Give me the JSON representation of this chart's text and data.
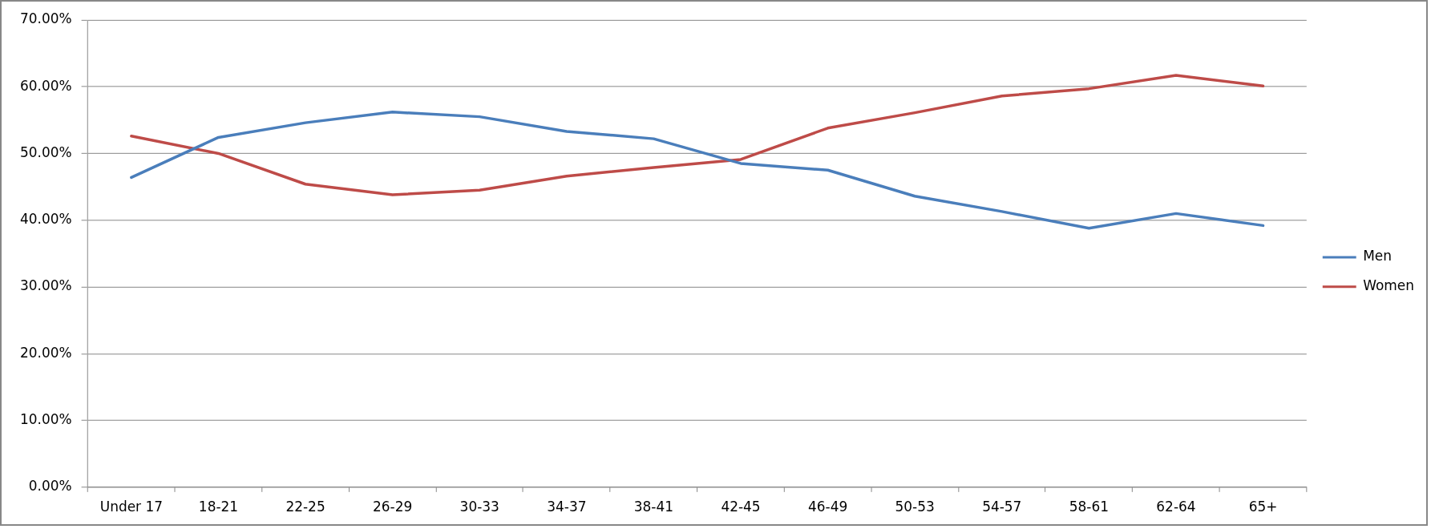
{
  "chart_data": {
    "type": "line",
    "categories": [
      "Under 17",
      "18-21",
      "22-25",
      "26-29",
      "30-33",
      "34-37",
      "38-41",
      "42-45",
      "46-49",
      "50-53",
      "54-57",
      "58-61",
      "62-64",
      "65+"
    ],
    "series": [
      {
        "name": "Men",
        "color": "#4a7ebb",
        "values": [
          46.4,
          52.4,
          54.6,
          56.2,
          55.5,
          53.3,
          52.2,
          48.5,
          47.5,
          43.6,
          41.3,
          38.8,
          41.0,
          39.2
        ]
      },
      {
        "name": "Women",
        "color": "#be4b48",
        "values": [
          52.6,
          50.0,
          45.4,
          43.8,
          44.5,
          46.6,
          47.9,
          49.1,
          53.8,
          56.1,
          58.6,
          59.7,
          61.7,
          60.1
        ]
      }
    ],
    "ylim": [
      0,
      70
    ],
    "yticks": [
      {
        "value": 0,
        "label": "0.00%"
      },
      {
        "value": 10,
        "label": "10.00%"
      },
      {
        "value": 20,
        "label": "20.00%"
      },
      {
        "value": 30,
        "label": "30.00%"
      },
      {
        "value": 40,
        "label": "40.00%"
      },
      {
        "value": 50,
        "label": "50.00%"
      },
      {
        "value": 60,
        "label": "60.00%"
      },
      {
        "value": 70,
        "label": "70.00%"
      }
    ],
    "grid": "y",
    "legend": "right"
  }
}
